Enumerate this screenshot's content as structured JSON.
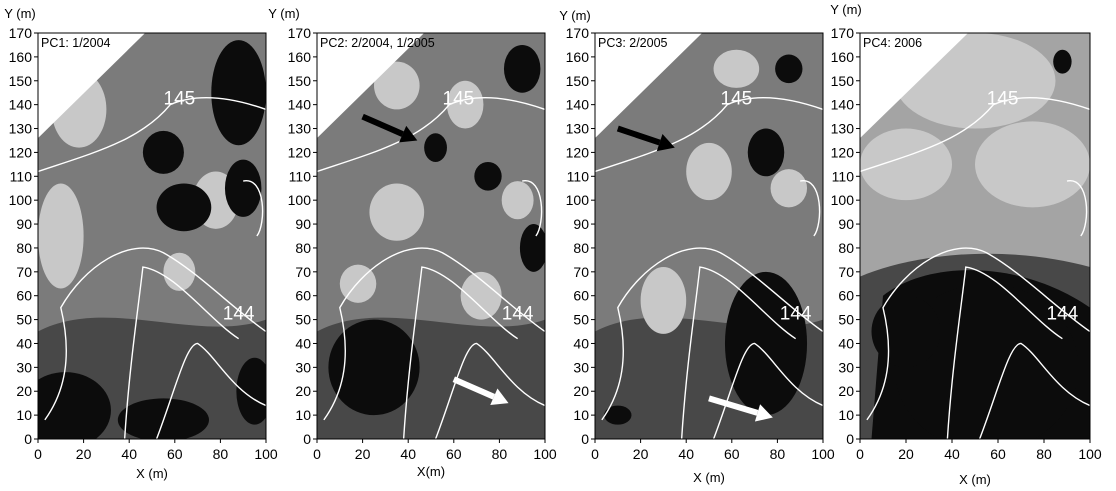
{
  "chart_data": [
    {
      "type": "heatmap",
      "title": "PC1: 1/2004",
      "xlabel": "X (m)",
      "ylabel": "Y (m)",
      "xlim": [
        0,
        100
      ],
      "ylim": [
        0,
        170
      ],
      "x_ticks": [
        "0",
        "20",
        "40",
        "60",
        "80",
        "100"
      ],
      "y_ticks": [
        "0",
        "10",
        "20",
        "30",
        "40",
        "50",
        "60",
        "70",
        "80",
        "90",
        "100",
        "110",
        "120",
        "130",
        "140",
        "150",
        "160",
        "170"
      ],
      "contour_labels": [
        "145",
        "144"
      ],
      "arrows": [],
      "zones": [
        {
          "level": 1,
          "center": [
            18,
            138
          ],
          "radius": [
            12,
            16
          ]
        },
        {
          "level": 1,
          "center": [
            10,
            85
          ],
          "radius": [
            10,
            22
          ]
        },
        {
          "level": 1,
          "center": [
            78,
            100
          ],
          "radius": [
            10,
            12
          ]
        },
        {
          "level": 1,
          "center": [
            62,
            70
          ],
          "radius": [
            7,
            8
          ]
        },
        {
          "level": 3,
          "center": [
            88,
            145
          ],
          "radius": [
            12,
            22
          ]
        },
        {
          "level": 3,
          "center": [
            55,
            120
          ],
          "radius": [
            9,
            9
          ]
        },
        {
          "level": 3,
          "center": [
            64,
            97
          ],
          "radius": [
            12,
            10
          ]
        },
        {
          "level": 3,
          "center": [
            90,
            105
          ],
          "radius": [
            8,
            12
          ]
        },
        {
          "level": 3,
          "center": [
            12,
            12
          ],
          "radius": [
            20,
            16
          ]
        },
        {
          "level": 3,
          "center": [
            55,
            8
          ],
          "radius": [
            20,
            9
          ]
        },
        {
          "level": 3,
          "center": [
            95,
            20
          ],
          "radius": [
            8,
            14
          ]
        }
      ]
    },
    {
      "type": "heatmap",
      "title": "PC2: 2/2004, 1/2005",
      "xlabel": "X(m)",
      "ylabel": "Y (m)",
      "xlim": [
        0,
        100
      ],
      "ylim": [
        0,
        170
      ],
      "x_ticks": [
        "0",
        "20",
        "40",
        "60",
        "80",
        "100"
      ],
      "y_ticks": [
        "0",
        "10",
        "20",
        "30",
        "40",
        "50",
        "60",
        "70",
        "80",
        "90",
        "100",
        "110",
        "120",
        "130",
        "140",
        "150",
        "160",
        "170"
      ],
      "contour_labels": [
        "145",
        "144"
      ],
      "arrows": [
        {
          "color": "black",
          "from": [
            20,
            135
          ],
          "to": [
            44,
            125
          ]
        },
        {
          "color": "white",
          "from": [
            60,
            25
          ],
          "to": [
            84,
            15
          ]
        }
      ],
      "zones": [
        {
          "level": 1,
          "center": [
            35,
            148
          ],
          "radius": [
            10,
            10
          ]
        },
        {
          "level": 1,
          "center": [
            35,
            95
          ],
          "radius": [
            12,
            12
          ]
        },
        {
          "level": 1,
          "center": [
            65,
            140
          ],
          "radius": [
            8,
            10
          ]
        },
        {
          "level": 1,
          "center": [
            72,
            60
          ],
          "radius": [
            9,
            10
          ]
        },
        {
          "level": 1,
          "center": [
            88,
            100
          ],
          "radius": [
            7,
            8
          ]
        },
        {
          "level": 1,
          "center": [
            18,
            65
          ],
          "radius": [
            8,
            8
          ]
        },
        {
          "level": 3,
          "center": [
            52,
            122
          ],
          "radius": [
            5,
            6
          ]
        },
        {
          "level": 3,
          "center": [
            90,
            155
          ],
          "radius": [
            8,
            10
          ]
        },
        {
          "level": 3,
          "center": [
            95,
            80
          ],
          "radius": [
            6,
            10
          ]
        },
        {
          "level": 3,
          "center": [
            75,
            110
          ],
          "radius": [
            6,
            6
          ]
        },
        {
          "level": 3,
          "center": [
            25,
            30
          ],
          "radius": [
            20,
            20
          ]
        }
      ]
    },
    {
      "type": "heatmap",
      "title": "PC3: 2/2005",
      "xlabel": "X (m)",
      "ylabel": "Y (m)",
      "xlim": [
        0,
        100
      ],
      "ylim": [
        0,
        170
      ],
      "x_ticks": [
        "0",
        "20",
        "40",
        "60",
        "80",
        "100"
      ],
      "y_ticks": [
        "0",
        "10",
        "20",
        "30",
        "40",
        "50",
        "60",
        "70",
        "80",
        "90",
        "100",
        "110",
        "120",
        "130",
        "140",
        "150",
        "160",
        "170"
      ],
      "contour_labels": [
        "145",
        "144"
      ],
      "arrows": [
        {
          "color": "black",
          "from": [
            10,
            130
          ],
          "to": [
            35,
            122
          ]
        },
        {
          "color": "white",
          "from": [
            50,
            17
          ],
          "to": [
            78,
            9
          ]
        }
      ],
      "zones": [
        {
          "level": 1,
          "center": [
            62,
            155
          ],
          "radius": [
            10,
            8
          ]
        },
        {
          "level": 1,
          "center": [
            50,
            112
          ],
          "radius": [
            10,
            12
          ]
        },
        {
          "level": 1,
          "center": [
            85,
            105
          ],
          "radius": [
            8,
            8
          ]
        },
        {
          "level": 1,
          "center": [
            30,
            58
          ],
          "radius": [
            10,
            14
          ]
        },
        {
          "level": 3,
          "center": [
            75,
            120
          ],
          "radius": [
            8,
            10
          ]
        },
        {
          "level": 3,
          "center": [
            75,
            40
          ],
          "radius": [
            18,
            30
          ]
        },
        {
          "level": 3,
          "center": [
            10,
            10
          ],
          "radius": [
            6,
            4
          ]
        },
        {
          "level": 3,
          "center": [
            85,
            155
          ],
          "radius": [
            6,
            6
          ]
        }
      ]
    },
    {
      "type": "heatmap",
      "title": "PC4: 2006",
      "xlabel": "X (m)",
      "ylabel": "Y (m)",
      "xlim": [
        0,
        100
      ],
      "ylim": [
        0,
        170
      ],
      "x_ticks": [
        "0",
        "20",
        "40",
        "60",
        "80",
        "100"
      ],
      "y_ticks": [
        "0",
        "10",
        "20",
        "30",
        "40",
        "50",
        "60",
        "70",
        "80",
        "90",
        "100",
        "110",
        "120",
        "130",
        "140",
        "150",
        "160",
        "170"
      ],
      "contour_labels": [
        "145",
        "144"
      ],
      "arrows": [],
      "zones": [
        {
          "level": 1,
          "center": [
            50,
            150
          ],
          "radius": [
            35,
            20
          ]
        },
        {
          "level": 1,
          "center": [
            20,
            115
          ],
          "radius": [
            20,
            15
          ]
        },
        {
          "level": 1,
          "center": [
            75,
            115
          ],
          "radius": [
            25,
            18
          ]
        },
        {
          "level": 3,
          "center": [
            55,
            30
          ],
          "radius": [
            40,
            35
          ]
        },
        {
          "level": 3,
          "center": [
            20,
            45
          ],
          "radius": [
            15,
            15
          ]
        },
        {
          "level": 3,
          "center": [
            88,
            158
          ],
          "radius": [
            4,
            5
          ]
        }
      ]
    }
  ],
  "colors": {
    "level_0": "#c8c8c8",
    "level_1": "#a4a4a4",
    "level_2": "#7b7b7b",
    "level_3": "#484848",
    "level_4": "#0c0c0c",
    "contour": "#ffffff"
  }
}
